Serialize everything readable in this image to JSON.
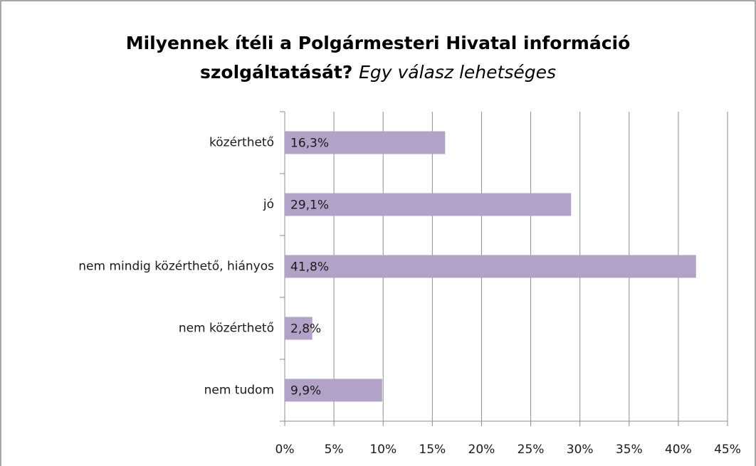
{
  "chart_data": {
    "type": "bar",
    "orientation": "horizontal",
    "title": "Milyennek ítéli a Polgármesteri Hivatal információ",
    "title_line2": "szolgáltatását?",
    "subtitle": "Egy válasz lehetséges",
    "categories": [
      "közérthető",
      "jó",
      "nem mindig közérthető, hiányos",
      "nem közérthető",
      "nem tudom"
    ],
    "values": [
      16.3,
      29.1,
      41.8,
      2.8,
      9.9
    ],
    "value_labels": [
      "16,3%",
      "29,1%",
      "41,8%",
      "2,8%",
      "9,9%"
    ],
    "color": "#b3a2c7",
    "xlim": [
      0,
      45
    ],
    "xticks": [
      {
        "value": 0,
        "label": "0%"
      },
      {
        "value": 5,
        "label": "5%"
      },
      {
        "value": 10,
        "label": "10%"
      },
      {
        "value": 15,
        "label": "15%"
      },
      {
        "value": 20,
        "label": "20%"
      },
      {
        "value": 25,
        "label": "25%"
      },
      {
        "value": 30,
        "label": "30%"
      },
      {
        "value": 35,
        "label": "35%"
      },
      {
        "value": 40,
        "label": "40%"
      },
      {
        "value": 45,
        "label": "45%"
      }
    ],
    "grid": true
  }
}
